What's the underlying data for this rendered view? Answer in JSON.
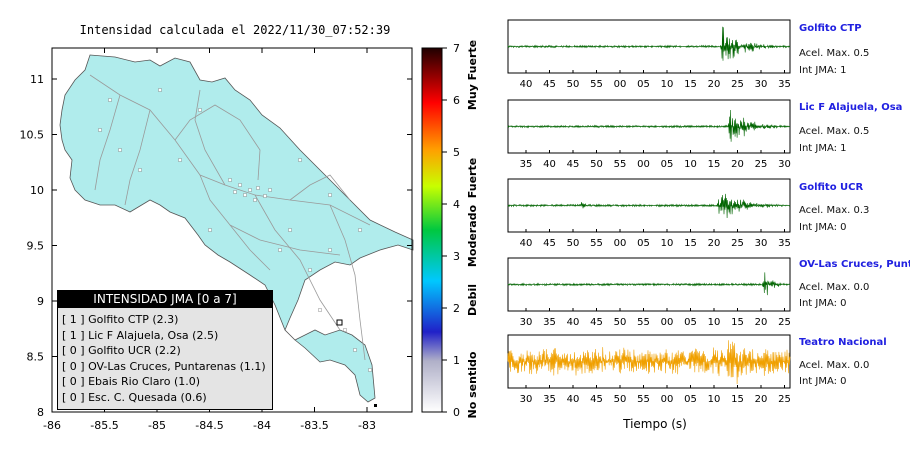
{
  "map": {
    "title": "Intensidad calculada el 2022/11/30_07:52:39",
    "land_color": "#b0ecec",
    "x_ticks": [
      "-86",
      "-85.5",
      "-85",
      "-84.5",
      "-84",
      "-83.5",
      "-83"
    ],
    "y_ticks": [
      "11",
      "10.5",
      "10",
      "9.5",
      "9",
      "8.5",
      "8"
    ]
  },
  "colorbar": {
    "ticks": [
      "7",
      "6",
      "5",
      "4",
      "3",
      "2",
      "1",
      "0"
    ],
    "labels": [
      "Muy Fuerte",
      "Fuerte",
      "Moderado",
      "Debil",
      "No sentido"
    ]
  },
  "legend": {
    "title": "INTENSIDAD JMA [0 a 7]",
    "items": [
      {
        "text": "[ 1 ]  Golfito CTP (2.3)"
      },
      {
        "text": "[ 1 ]  Lic F Alajuela, Osa (2.5)"
      },
      {
        "text": "[ 0 ]  Golfito UCR (2.2)"
      },
      {
        "text": "[ 0 ]  OV-Las Cruces, Puntarenas (1.1)"
      },
      {
        "text": "[ 0 ]  Ebais Rio Claro (1.0)"
      },
      {
        "text": "[ 0 ]  Esc. C. Quesada (0.6)"
      }
    ]
  },
  "stations": [
    {
      "name": "Golfito CTP",
      "acel": "Acel. Max. 0.5",
      "int": "Int JMA: 1",
      "color": "#006400",
      "ticks": [
        "40",
        "45",
        "50",
        "55",
        "00",
        "05",
        "10",
        "15",
        "20",
        "25",
        "30",
        "35"
      ],
      "onset": 0.75,
      "amp": 0.95
    },
    {
      "name": "Lic F Alajuela, Osa",
      "acel": "Acel. Max. 0.5",
      "int": "Int JMA: 1",
      "color": "#006400",
      "ticks": [
        "35",
        "40",
        "45",
        "50",
        "55",
        "00",
        "05",
        "10",
        "15",
        "20",
        "25",
        "30"
      ],
      "onset": 0.78,
      "amp": 0.95
    },
    {
      "name": "Golfito UCR",
      "acel": "Acel. Max. 0.3",
      "int": "Int JMA: 0",
      "color": "#006400",
      "ticks": [
        "40",
        "45",
        "50",
        "55",
        "00",
        "05",
        "10",
        "15",
        "20",
        "25",
        "30",
        "35"
      ],
      "onset": 0.74,
      "amp": 0.95
    },
    {
      "name": "OV-Las Cruces, Puntar",
      "acel": "Acel. Max. 0.0",
      "int": "Int JMA: 0",
      "color": "#006400",
      "ticks": [
        "30",
        "35",
        "40",
        "45",
        "50",
        "55",
        "00",
        "05",
        "10",
        "15",
        "20",
        "25"
      ],
      "onset": 0.9,
      "amp": 0.85
    },
    {
      "name": "Teatro Nacional",
      "acel": "Acel. Max. 0.0",
      "int": "Int JMA: 0",
      "color": "#f0a000",
      "ticks": [
        "30",
        "35",
        "40",
        "45",
        "50",
        "55",
        "00",
        "05",
        "10",
        "15",
        "20",
        "25"
      ],
      "onset": 0.0,
      "amp": 0.6
    }
  ],
  "xlabel": "Tiempo (s)"
}
